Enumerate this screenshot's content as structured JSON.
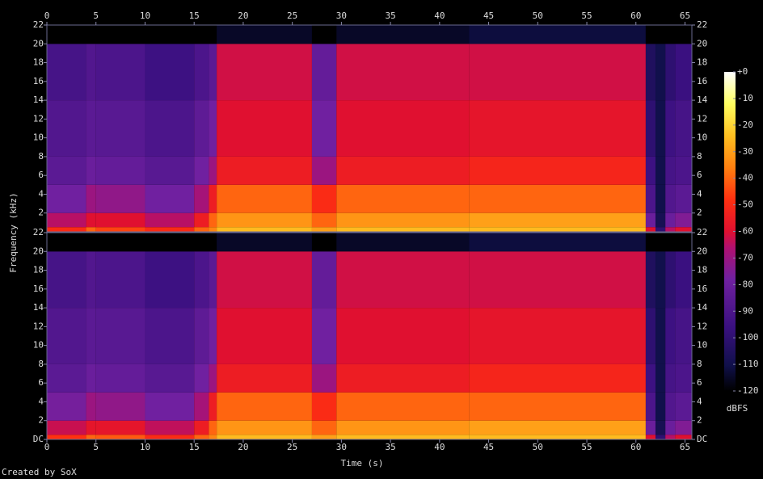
{
  "chart_data": {
    "type": "spectrogram",
    "x_label": "Time (s)",
    "y_label": "Frequency (kHz)",
    "z_label": "dBFS",
    "credit": "Created by SoX",
    "xlim": [
      0,
      65.7
    ],
    "xticks": [
      0,
      5,
      10,
      15,
      20,
      25,
      30,
      35,
      40,
      45,
      50,
      55,
      60,
      65
    ],
    "ylim": [
      0,
      22
    ],
    "yticks": [
      {
        "value": 0,
        "label": "DC"
      },
      2,
      4,
      6,
      8,
      10,
      12,
      14,
      16,
      18,
      20,
      22
    ],
    "zlim": [
      -120,
      0
    ],
    "zticks": [
      {
        "value": 0,
        "label": "+0"
      },
      -10,
      -20,
      -30,
      -40,
      -50,
      -60,
      -70,
      -80,
      -90,
      -100,
      -110,
      -120
    ],
    "x_edges": [
      0,
      4,
      5,
      10,
      15,
      16.5,
      17.3,
      27,
      29.5,
      43,
      61,
      62,
      63,
      64,
      65.7
    ],
    "y_edges": [
      0,
      0.5,
      2,
      5,
      8,
      14,
      20,
      22
    ],
    "values": [
      [
        [
          -50,
          -65,
          -78,
          -85,
          -88,
          -92,
          -120
        ],
        [
          -40,
          -60,
          -70,
          -80,
          -85,
          -88,
          -120
        ],
        [
          -45,
          -60,
          -72,
          -82,
          -86,
          -90,
          -120
        ],
        [
          -50,
          -65,
          -78,
          -86,
          -90,
          -95,
          -120
        ],
        [
          -40,
          -55,
          -68,
          -78,
          -84,
          -90,
          -120
        ],
        [
          -35,
          -40,
          -55,
          -70,
          -78,
          -85,
          -120
        ],
        [
          -25,
          -32,
          -40,
          -55,
          -60,
          -62,
          -115
        ],
        [
          -30,
          -40,
          -50,
          -70,
          -78,
          -82,
          -120
        ],
        [
          -25,
          -32,
          -40,
          -55,
          -60,
          -62,
          -115
        ],
        [
          -25,
          -30,
          -40,
          -52,
          -58,
          -62,
          -112
        ],
        [
          -60,
          -80,
          -90,
          -95,
          -100,
          -105,
          -120
        ],
        [
          -100,
          -108,
          -110,
          -110,
          -110,
          -110,
          -120
        ],
        [
          -65,
          -80,
          -88,
          -92,
          -95,
          -100,
          -120
        ],
        [
          -60,
          -75,
          -85,
          -90,
          -92,
          -96,
          -120
        ]
      ],
      [
        [
          -48,
          -63,
          -77,
          -85,
          -88,
          -92,
          -120
        ],
        [
          -40,
          -58,
          -70,
          -80,
          -85,
          -88,
          -120
        ],
        [
          -42,
          -58,
          -72,
          -82,
          -86,
          -90,
          -120
        ],
        [
          -50,
          -64,
          -78,
          -86,
          -90,
          -95,
          -120
        ],
        [
          -40,
          -55,
          -68,
          -78,
          -84,
          -90,
          -120
        ],
        [
          -35,
          -40,
          -55,
          -70,
          -78,
          -85,
          -120
        ],
        [
          -25,
          -32,
          -40,
          -55,
          -60,
          -62,
          -115
        ],
        [
          -30,
          -40,
          -50,
          -70,
          -78,
          -82,
          -120
        ],
        [
          -25,
          -32,
          -40,
          -55,
          -60,
          -62,
          -115
        ],
        [
          -25,
          -30,
          -40,
          -52,
          -58,
          -62,
          -112
        ],
        [
          -60,
          -80,
          -90,
          -95,
          -100,
          -105,
          -120
        ],
        [
          -100,
          -108,
          -110,
          -110,
          -110,
          -110,
          -120
        ],
        [
          -65,
          -80,
          -88,
          -92,
          -95,
          -100,
          -120
        ],
        [
          -60,
          -75,
          -85,
          -90,
          -92,
          -96,
          -120
        ]
      ]
    ]
  }
}
